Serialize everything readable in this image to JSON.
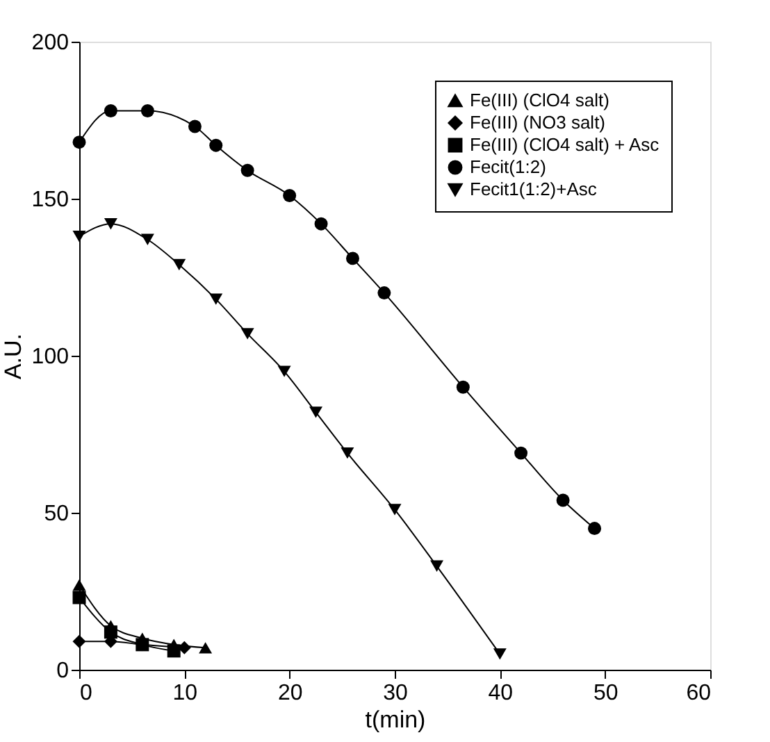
{
  "chart_data": {
    "type": "line",
    "xlabel": "t(min)",
    "ylabel": "A.U.",
    "xlim": [
      0,
      60
    ],
    "xticks": [
      0,
      10,
      20,
      30,
      40,
      50,
      60
    ],
    "ylim": [
      0,
      200
    ],
    "yticks": [
      0,
      50,
      100,
      150,
      200
    ],
    "grid": false,
    "legend": "top right",
    "line_style": "solid",
    "series": [
      {
        "name": "Fe(III) (ClO4 salt)",
        "color": "#000000",
        "marker": "triangle",
        "x": [
          0,
          3,
          6,
          9,
          12
        ],
        "values": [
          27,
          14,
          10,
          8,
          7
        ]
      },
      {
        "name": "Fe(III) (NO3 salt)",
        "color": "#000000",
        "marker": "diamond",
        "x": [
          0,
          3,
          6,
          10
        ],
        "values": [
          9,
          9,
          8,
          7
        ]
      },
      {
        "name": "Fe(III) (ClO4 salt) + Asc",
        "color": "#000000",
        "marker": "square",
        "x": [
          0,
          3,
          6,
          9
        ],
        "values": [
          23,
          12,
          8,
          6
        ]
      },
      {
        "name": "Fecit(1:2)",
        "color": "#000000",
        "marker": "circle",
        "x": [
          0,
          3,
          6.5,
          11,
          13,
          16,
          20,
          23,
          26,
          29,
          36.5,
          42,
          46,
          49
        ],
        "values": [
          168,
          178,
          178,
          173,
          167,
          159,
          151,
          142,
          131,
          120,
          90,
          69,
          54,
          45
        ]
      },
      {
        "name": "Fecit1(1:2)+Asc",
        "color": "#000000",
        "marker": "triangle-down",
        "x": [
          0,
          3,
          6.5,
          9.5,
          13,
          16,
          19.5,
          22.5,
          25.5,
          30,
          34,
          40
        ],
        "values": [
          138,
          142,
          137,
          129,
          118,
          107,
          95,
          82,
          69,
          51,
          33,
          5
        ]
      }
    ]
  }
}
